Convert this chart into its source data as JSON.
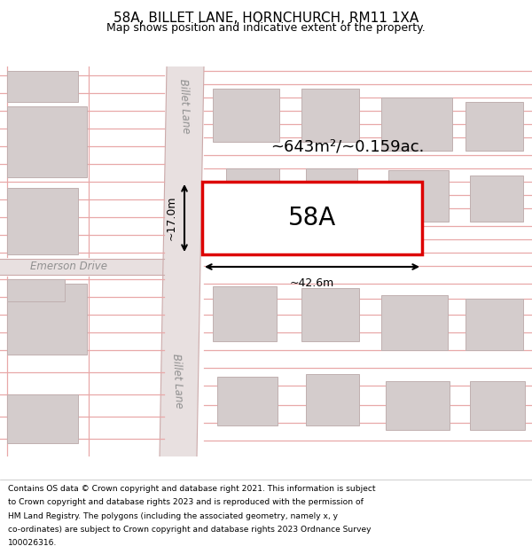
{
  "title": "58A, BILLET LANE, HORNCHURCH, RM11 1XA",
  "subtitle": "Map shows position and indicative extent of the property.",
  "footer_lines": [
    "Contains OS data © Crown copyright and database right 2021. This information is subject",
    "to Crown copyright and database rights 2023 and is reproduced with the permission of",
    "HM Land Registry. The polygons (including the associated geometry, namely x, y",
    "co-ordinates) are subject to Crown copyright and database rights 2023 Ordnance Survey",
    "100026316."
  ],
  "map_bg": "#f2eded",
  "road_fill": "#e8e0e0",
  "building_fill": "#d4cccc",
  "building_edge": "#c0b0b0",
  "road_line_color": "#e8a8a8",
  "highlight_color": "#dd0000",
  "highlight_fill": "#ffffff",
  "label_58A": "58A",
  "area_label": "~643m²/~0.159ac.",
  "dim_width": "~42.6m",
  "dim_height": "~17.0m",
  "street_label_top": "Billet Lane",
  "street_label_bottom": "Billet Lane",
  "street_label_left": "Emerson Drive"
}
